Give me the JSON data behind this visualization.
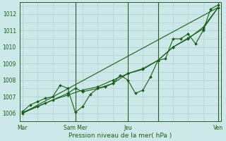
{
  "xlabel": "Pression niveau de la mer( hPa )",
  "bg_color": "#cce8e8",
  "grid_color": "#aacece",
  "line_color": "#1a5e1a",
  "vline_color": "#2a5a2a",
  "ylim": [
    1005.5,
    1012.7
  ],
  "xlim": [
    -0.2,
    13.2
  ],
  "yticks": [
    1006,
    1007,
    1008,
    1009,
    1010,
    1011,
    1012
  ],
  "day_separators": [
    3.5,
    7.0,
    9.0,
    13.0
  ],
  "xtick_positions": [
    0,
    3.5,
    7.0,
    9.0,
    13.0
  ],
  "xtick_labels": [
    "Mar",
    "Sam Mer",
    "Jeu",
    "",
    "Ven"
  ],
  "straight_line": {
    "x": [
      0,
      13
    ],
    "y": [
      1006.0,
      1012.4
    ]
  },
  "smooth_line1": {
    "x": [
      0,
      1.5,
      3,
      3.5,
      4,
      5,
      6,
      7,
      8,
      9,
      10,
      11,
      12,
      13
    ],
    "y": [
      1006.05,
      1006.6,
      1007.2,
      1007.5,
      1007.3,
      1007.5,
      1007.8,
      1008.4,
      1008.7,
      1009.2,
      1010.0,
      1010.5,
      1011.2,
      1012.4
    ]
  },
  "zigzag_line1": {
    "x": [
      0,
      0.5,
      1,
      1.5,
      2,
      2.5,
      3,
      3.5,
      4,
      4.5,
      5,
      5.5,
      6,
      6.5,
      7,
      7.5,
      8,
      8.5,
      9,
      9.5,
      10,
      10.5,
      11,
      11.5,
      12,
      12.5,
      13
    ],
    "y": [
      1006.1,
      1006.5,
      1006.7,
      1006.9,
      1007.0,
      1007.7,
      1007.5,
      1006.05,
      1006.4,
      1007.15,
      1007.5,
      1007.6,
      1007.8,
      1008.3,
      1008.0,
      1007.2,
      1007.4,
      1008.2,
      1009.2,
      1009.3,
      1010.5,
      1010.5,
      1010.8,
      1010.2,
      1011.0,
      1012.3,
      1012.55
    ]
  },
  "smooth_line2": {
    "x": [
      0,
      1,
      2,
      3,
      4,
      5,
      6,
      7,
      8,
      9,
      10,
      11,
      12,
      13
    ],
    "y": [
      1006.0,
      1006.4,
      1006.8,
      1007.1,
      1007.4,
      1007.6,
      1008.0,
      1008.4,
      1008.65,
      1009.2,
      1010.0,
      1010.55,
      1011.1,
      1012.4
    ]
  }
}
